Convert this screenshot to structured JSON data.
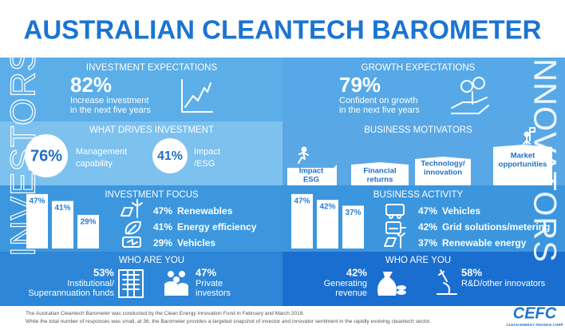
{
  "title": "AUSTRALIAN CLEANTECH BAROMETER",
  "investors_label": "INVESTORS",
  "innovators_label": "INNOVATORS",
  "investors": {
    "expectations": {
      "heading": "INVESTMENT EXPECTATIONS",
      "value": "82%",
      "text": [
        "Increase investment",
        "in the next five years"
      ]
    },
    "drives": {
      "heading": "WHAT DRIVES INVESTMENT",
      "items": [
        {
          "value": "76%",
          "label": [
            "Management",
            "capability"
          ]
        },
        {
          "value": "41%",
          "label": [
            "Impact",
            "/ESG"
          ]
        }
      ]
    },
    "focus": {
      "heading": "INVESTMENT FOCUS",
      "bars": [
        {
          "value": 47,
          "label": "47%"
        },
        {
          "value": 41,
          "label": "41%"
        },
        {
          "value": 29,
          "label": "29%"
        }
      ],
      "items": [
        {
          "value": "47%",
          "label": "Renewables"
        },
        {
          "value": "41%",
          "label": "Energy efficiency"
        },
        {
          "value": "29%",
          "label": "Vehicles"
        }
      ]
    },
    "who": {
      "heading": "WHO ARE YOU",
      "items": [
        {
          "value": "53%",
          "label": [
            "Institutional/",
            "Superannuation funds"
          ]
        },
        {
          "value": "47%",
          "label": [
            "Private",
            "investors"
          ]
        }
      ]
    }
  },
  "innovators": {
    "expectations": {
      "heading": "GROWTH EXPECTATIONS",
      "value": "79%",
      "text": [
        "Confident on growth",
        "in the next five years"
      ]
    },
    "motivators": {
      "heading": "BUSINESS MOTIVATORS",
      "steps": [
        [
          "Impact",
          "ESG"
        ],
        [
          "Financial",
          "returns"
        ],
        [
          "Technology/",
          "innovation"
        ],
        [
          "Market",
          "opportunities"
        ]
      ]
    },
    "activity": {
      "heading": "BUSINESS ACTIVITY",
      "bars": [
        {
          "value": 47,
          "label": "47%"
        },
        {
          "value": 42,
          "label": "42%"
        },
        {
          "value": 37,
          "label": "37%"
        }
      ],
      "items": [
        {
          "value": "47%",
          "label": "Vehicles"
        },
        {
          "value": "42%",
          "label": "Grid solutions/metering"
        },
        {
          "value": "37%",
          "label": "Renewable energy"
        }
      ]
    },
    "who": {
      "heading": "WHO ARE YOU",
      "items": [
        {
          "value": "42%",
          "label": [
            "Generating",
            "revenue"
          ]
        },
        {
          "value": "58%",
          "label": [
            "R&D/other innovators"
          ]
        }
      ]
    }
  },
  "footer": [
    "The Australian Cleantech Barometer was conducted by the Clean Energy Innovation Fund in February and March 2019.",
    "While the total number of responses was small, at 36, the Barometer provides a targeted snapshot of investor and innovator sentiment in the rapidly evolving cleantech sector."
  ],
  "logo": {
    "name": "CEFC",
    "tagline": "CLEAN ENERGY FINANCE CORP"
  }
}
